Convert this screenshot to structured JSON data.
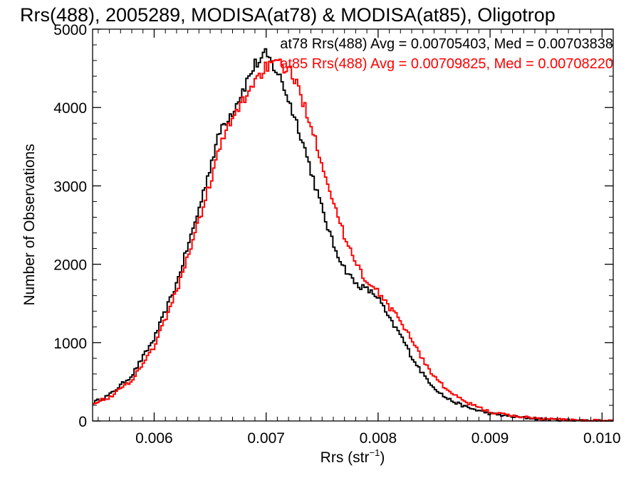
{
  "chart_data": {
    "type": "line",
    "style": "step-histogram",
    "title": "Rrs(488), 2005289, MODISA(at78) & MODISA(at85), Oligotrop",
    "xlabel": "Rrs (str",
    "xlabel_exponent": "−1",
    "xlabel_close": ")",
    "ylabel": "Number of Observations",
    "xlim": [
      0.00545,
      0.0101
    ],
    "ylim": [
      0,
      5000
    ],
    "x_ticks": [
      0.006,
      0.007,
      0.008,
      0.009,
      0.01
    ],
    "x_tick_labels": [
      "0.006",
      "0.007",
      "0.008",
      "0.009",
      "0.010"
    ],
    "y_ticks": [
      0,
      1000,
      2000,
      3000,
      4000,
      5000
    ],
    "y_tick_labels": [
      "0",
      "1000",
      "2000",
      "3000",
      "4000",
      "5000"
    ],
    "grid": false,
    "legend_position": "top-right",
    "series": [
      {
        "name": "at78",
        "stats_text": "at78 Rrs(488) Avg = 0.00705403, Med = 0.00703838",
        "color": "#000000",
        "x": [
          0.00545,
          0.0056,
          0.0058,
          0.006,
          0.0062,
          0.0064,
          0.0065,
          0.0066,
          0.0067,
          0.0068,
          0.0069,
          0.00695,
          0.007,
          0.00705,
          0.0071,
          0.00715,
          0.0072,
          0.0073,
          0.0074,
          0.0075,
          0.0076,
          0.0077,
          0.0078,
          0.0079,
          0.008,
          0.0081,
          0.0082,
          0.0083,
          0.0084,
          0.0085,
          0.0086,
          0.0087,
          0.0088,
          0.009,
          0.0092,
          0.0095,
          0.0098,
          0.0101
        ],
        "y": [
          230,
          330,
          580,
          1050,
          1750,
          2700,
          3250,
          3750,
          3950,
          4250,
          4550,
          4600,
          4680,
          4560,
          4450,
          4300,
          4100,
          3700,
          3200,
          2700,
          2250,
          1950,
          1750,
          1680,
          1580,
          1300,
          1100,
          820,
          600,
          430,
          300,
          230,
          170,
          95,
          55,
          20,
          8,
          0
        ]
      },
      {
        "name": "at85",
        "stats_text": "at85 Rrs(488) Avg = 0.00709825, Med = 0.00708220",
        "color": "#ff0000",
        "x": [
          0.00545,
          0.0056,
          0.0058,
          0.006,
          0.0062,
          0.0064,
          0.0065,
          0.0066,
          0.0067,
          0.0068,
          0.0069,
          0.007,
          0.0071,
          0.0072,
          0.0073,
          0.0074,
          0.0075,
          0.0076,
          0.0077,
          0.0078,
          0.0079,
          0.008,
          0.0081,
          0.0082,
          0.0083,
          0.0084,
          0.0085,
          0.0086,
          0.0087,
          0.0088,
          0.009,
          0.0092,
          0.0095,
          0.0098,
          0.0101
        ],
        "y": [
          230,
          300,
          520,
          950,
          1650,
          2550,
          3050,
          3550,
          3850,
          4100,
          4350,
          4520,
          4550,
          4500,
          4200,
          3800,
          3300,
          2800,
          2350,
          2050,
          1750,
          1650,
          1450,
          1280,
          1050,
          780,
          570,
          420,
          310,
          230,
          115,
          65,
          25,
          10,
          0
        ]
      }
    ]
  }
}
